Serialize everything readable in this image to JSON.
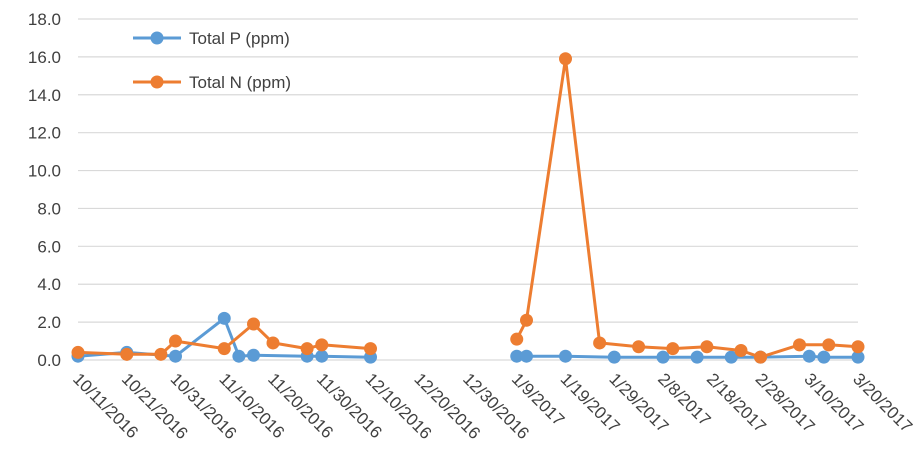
{
  "chart_data": {
    "type": "line",
    "x_axis": {
      "type": "date",
      "min": "2016-10-11",
      "max": "2017-03-20",
      "tick_labels": [
        "10/11/2016",
        "10/21/2016",
        "10/31/2016",
        "11/10/2016",
        "11/20/2016",
        "11/30/2016",
        "12/10/2016",
        "12/20/2016",
        "12/30/2016",
        "1/9/2017",
        "1/19/2017",
        "1/29/2017",
        "2/8/2017",
        "2/18/2017",
        "2/28/2017",
        "3/10/2017",
        "3/20/2017"
      ]
    },
    "y_axis": {
      "min": 0,
      "max": 18,
      "tick_labels": [
        "0.0",
        "2.0",
        "4.0",
        "6.0",
        "8.0",
        "10.0",
        "12.0",
        "14.0",
        "16.0",
        "18.0"
      ]
    },
    "grid": "horizontal",
    "legend_position": "top-left",
    "series": [
      {
        "name": "Total P (ppm)",
        "color": "#5b9bd5",
        "points": [
          {
            "x": "2016-10-11",
            "y": 0.2
          },
          {
            "x": "2016-10-21",
            "y": 0.4
          },
          {
            "x": "2016-10-31",
            "y": 0.2
          },
          {
            "x": "2016-11-10",
            "y": 2.2
          },
          {
            "x": "2016-11-13",
            "y": 0.2
          },
          {
            "x": "2016-11-16",
            "y": 0.25
          },
          {
            "x": "2016-11-27",
            "y": 0.2
          },
          {
            "x": "2016-11-30",
            "y": 0.2
          },
          {
            "x": "2016-12-10",
            "y": 0.15
          },
          {
            "x": "2017-01-09",
            "y": 0.2
          },
          {
            "x": "2017-01-11",
            "y": 0.2
          },
          {
            "x": "2017-01-19",
            "y": 0.2
          },
          {
            "x": "2017-01-29",
            "y": 0.15
          },
          {
            "x": "2017-02-08",
            "y": 0.15
          },
          {
            "x": "2017-02-15",
            "y": 0.15
          },
          {
            "x": "2017-02-22",
            "y": 0.15
          },
          {
            "x": "2017-02-28",
            "y": 0.15
          },
          {
            "x": "2017-03-10",
            "y": 0.2
          },
          {
            "x": "2017-03-13",
            "y": 0.15
          },
          {
            "x": "2017-03-20",
            "y": 0.15
          }
        ]
      },
      {
        "name": "Total N (ppm)",
        "color": "#ed7d31",
        "points": [
          {
            "x": "2016-10-11",
            "y": 0.4
          },
          {
            "x": "2016-10-21",
            "y": 0.3
          },
          {
            "x": "2016-10-28",
            "y": 0.3
          },
          {
            "x": "2016-10-31",
            "y": 1.0
          },
          {
            "x": "2016-11-10",
            "y": 0.6
          },
          {
            "x": "2016-11-16",
            "y": 1.9
          },
          {
            "x": "2016-11-20",
            "y": 0.9
          },
          {
            "x": "2016-11-27",
            "y": 0.6
          },
          {
            "x": "2016-11-30",
            "y": 0.8
          },
          {
            "x": "2016-12-10",
            "y": 0.6
          },
          {
            "x": "2017-01-09",
            "y": 1.1
          },
          {
            "x": "2017-01-11",
            "y": 2.1
          },
          {
            "x": "2017-01-19",
            "y": 15.9
          },
          {
            "x": "2017-01-26",
            "y": 0.9
          },
          {
            "x": "2017-02-03",
            "y": 0.7
          },
          {
            "x": "2017-02-10",
            "y": 0.6
          },
          {
            "x": "2017-02-17",
            "y": 0.7
          },
          {
            "x": "2017-02-24",
            "y": 0.5
          },
          {
            "x": "2017-02-28",
            "y": 0.15
          },
          {
            "x": "2017-03-08",
            "y": 0.8
          },
          {
            "x": "2017-03-14",
            "y": 0.8
          },
          {
            "x": "2017-03-20",
            "y": 0.7
          }
        ]
      }
    ]
  }
}
